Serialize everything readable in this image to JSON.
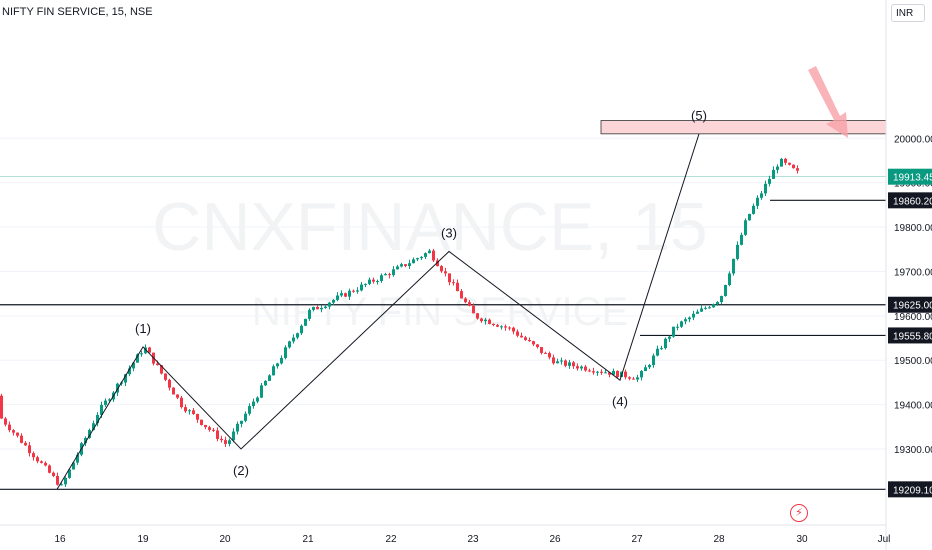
{
  "header": {
    "symbol_title": "NIFTY FIN SERVICE, 15, NSE",
    "currency": "INR"
  },
  "watermark": {
    "ticker": "CNXFINANCE, 15",
    "name": "NIFTY FIN SERVICE"
  },
  "colors": {
    "up": "#089981",
    "down": "#f23645",
    "zone_fill": "#fbd5d8",
    "zone_border": "#333333",
    "arrow": "#f7a1a8"
  },
  "icons": {
    "alert": "lightning-alert-icon"
  },
  "chart_data": {
    "type": "candlestick",
    "title": "NIFTY FIN SERVICE, 15, NSE",
    "y_axis": {
      "ylim": [
        19140,
        20280
      ],
      "ticks": [
        19300,
        19400,
        19500,
        19600,
        19700,
        19800,
        19900,
        20000
      ],
      "tick_labels": [
        "19300.00",
        "19400.00",
        "19500.00",
        "19600.00",
        "19700.00",
        "19800.00",
        "19900.00",
        "20000.00"
      ]
    },
    "x_axis": {
      "ticks": [
        16,
        19,
        20,
        21,
        22,
        23,
        26,
        27,
        28,
        30,
        "Jul"
      ],
      "tick_labels": [
        "16",
        "19",
        "20",
        "21",
        "22",
        "23",
        "26",
        "27",
        "28",
        "30",
        "Jul"
      ]
    },
    "last_price": {
      "value": 19913.45,
      "label": "19913.45"
    },
    "horizontal_levels": [
      {
        "value": 19625.0,
        "label": "19625.00"
      },
      {
        "value": 19555.8,
        "label": "19555.80"
      },
      {
        "value": 19209.1,
        "label": "19209.10"
      },
      {
        "value": 19860.2,
        "label": "19860.20"
      }
    ],
    "supply_zone": {
      "from": 20010,
      "to": 20040
    },
    "elliott_waves": [
      {
        "label": "",
        "price": 19209
      },
      {
        "label": "(1)",
        "price": 19530
      },
      {
        "label": "(2)",
        "price": 19300
      },
      {
        "label": "(3)",
        "price": 19745
      },
      {
        "label": "(4)",
        "price": 19455
      },
      {
        "label": "(5)",
        "price": 20010
      }
    ],
    "price_path_anchors": [
      {
        "date": "15",
        "price": 19420
      },
      {
        "date": "16",
        "price": 19215
      },
      {
        "date": "16",
        "price": 19380
      },
      {
        "date": "19",
        "price": 19530
      },
      {
        "date": "19",
        "price": 19400
      },
      {
        "date": "20",
        "price": 19310
      },
      {
        "date": "21",
        "price": 19610
      },
      {
        "date": "22",
        "price": 19700
      },
      {
        "date": "22",
        "price": 19745
      },
      {
        "date": "23",
        "price": 19600
      },
      {
        "date": "23",
        "price": 19570
      },
      {
        "date": "26",
        "price": 19495
      },
      {
        "date": "27",
        "price": 19460
      },
      {
        "date": "27",
        "price": 19575
      },
      {
        "date": "28",
        "price": 19640
      },
      {
        "date": "28",
        "price": 19820
      },
      {
        "date": "29",
        "price": 19950
      },
      {
        "date": "30",
        "price": 19913
      }
    ]
  }
}
